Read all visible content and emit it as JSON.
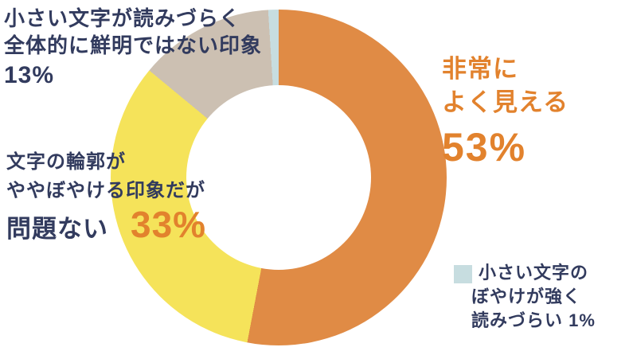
{
  "page": {
    "background": "#FFFFFF"
  },
  "colors": {
    "navy": "#323B5E",
    "orange_text": "#E2822D",
    "white": "#FFFFFF"
  },
  "chart_data": {
    "type": "pie",
    "variant": "donut",
    "title": "",
    "unit": "%",
    "start_angle_deg": 0,
    "direction": "clockwise",
    "legend_position": "around-chart",
    "segments": [
      {
        "label": "非常によく見える",
        "value": 53,
        "color": "#E08B45"
      },
      {
        "label": "文字の輪郭がややぼやける印象だが問題ない",
        "value": 33,
        "color": "#F5E35A"
      },
      {
        "label": "小さい文字が読みづらく全体的に鮮明ではない印象",
        "value": 13,
        "color": "#CCC0B2"
      },
      {
        "label": "小さい文字のぼやけが強く読みづらい",
        "value": 1,
        "color": "#C7DDE0"
      }
    ]
  },
  "labels": {
    "unsharp": {
      "line1": "小さい文字が読みづらく",
      "line2": "全体的に鮮明ではない印象",
      "pct": "13%"
    },
    "slight_blur": {
      "line1": "文字の輪郭が",
      "line2": "ややぼやける印象だが",
      "line3": "問題ない",
      "pct": "33%"
    },
    "very_good": {
      "line1": "非常に",
      "line2": "よく見える",
      "pct": "53%"
    },
    "strong_blur": {
      "line1": "小さい文字の",
      "line2": "ぼやけが強く",
      "line3": "読みづらい 1%"
    }
  }
}
